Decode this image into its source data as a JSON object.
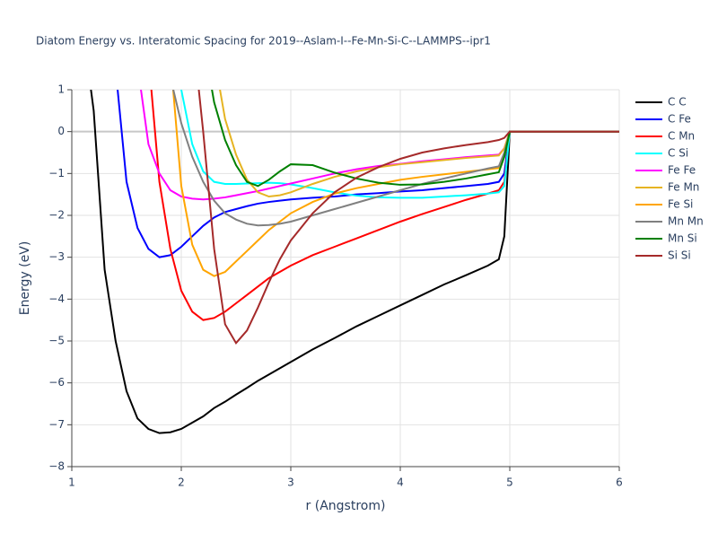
{
  "chart_data": {
    "type": "line",
    "title": "Diatom Energy vs. Interatomic Spacing for 2019--Aslam-I--Fe-Mn-Si-C--LAMMPS--ipr1",
    "x_label": "r (Angstrom)",
    "y_label": "Energy (eV)",
    "x": [
      1.15,
      1.2,
      1.3,
      1.4,
      1.5,
      1.6,
      1.7,
      1.8,
      1.9,
      2.0,
      2.1,
      2.2,
      2.3,
      2.4,
      2.5,
      2.6,
      2.7,
      2.8,
      2.9,
      3.0,
      3.2,
      3.4,
      3.6,
      3.8,
      4.0,
      4.2,
      4.4,
      4.6,
      4.8,
      4.9,
      4.95,
      5.0,
      5.5,
      6.0
    ],
    "series": [
      {
        "name": "C C",
        "color": "#000000",
        "values": [
          1.5,
          0.5,
          -3.3,
          -5.0,
          -6.2,
          -6.85,
          -7.1,
          -7.2,
          -7.18,
          -7.1,
          -6.95,
          -6.8,
          -6.6,
          -6.45,
          -6.28,
          -6.12,
          -5.95,
          -5.8,
          -5.65,
          -5.5,
          -5.2,
          -4.93,
          -4.65,
          -4.4,
          -4.15,
          -3.9,
          -3.65,
          -3.43,
          -3.2,
          -3.05,
          -2.5,
          0,
          0,
          0
        ]
      },
      {
        "name": "C Fe",
        "color": "#0000ff",
        "values": [
          null,
          null,
          null,
          1.5,
          -1.2,
          -2.3,
          -2.8,
          -3.0,
          -2.95,
          -2.75,
          -2.5,
          -2.25,
          -2.05,
          -1.92,
          -1.85,
          -1.78,
          -1.72,
          -1.68,
          -1.65,
          -1.62,
          -1.58,
          -1.55,
          -1.5,
          -1.47,
          -1.43,
          -1.4,
          -1.35,
          -1.3,
          -1.25,
          -1.2,
          -1.0,
          0,
          0,
          0
        ]
      },
      {
        "name": "C Mn",
        "color": "#ff0000",
        "values": [
          null,
          null,
          null,
          null,
          null,
          null,
          1.8,
          -1.2,
          -2.8,
          -3.8,
          -4.3,
          -4.5,
          -4.45,
          -4.3,
          -4.1,
          -3.9,
          -3.7,
          -3.5,
          -3.35,
          -3.2,
          -2.95,
          -2.75,
          -2.55,
          -2.35,
          -2.15,
          -1.97,
          -1.8,
          -1.63,
          -1.48,
          -1.4,
          -1.2,
          0,
          0,
          0
        ]
      },
      {
        "name": "C Si",
        "color": "#00ffff",
        "values": [
          null,
          null,
          null,
          null,
          null,
          null,
          null,
          null,
          2.5,
          1.0,
          -0.3,
          -0.95,
          -1.2,
          -1.25,
          -1.25,
          -1.24,
          -1.23,
          -1.22,
          -1.23,
          -1.26,
          -1.35,
          -1.45,
          -1.53,
          -1.57,
          -1.58,
          -1.58,
          -1.55,
          -1.52,
          -1.48,
          -1.45,
          -1.3,
          0,
          0,
          0
        ]
      },
      {
        "name": "Fe Fe",
        "color": "#ff00ff",
        "values": [
          null,
          null,
          null,
          null,
          null,
          1.6,
          -0.3,
          -1.0,
          -1.4,
          -1.55,
          -1.6,
          -1.62,
          -1.6,
          -1.57,
          -1.52,
          -1.47,
          -1.42,
          -1.36,
          -1.3,
          -1.24,
          -1.12,
          -1.0,
          -0.9,
          -0.82,
          -0.77,
          -0.71,
          -0.66,
          -0.61,
          -0.57,
          -0.55,
          -0.4,
          0,
          0,
          0
        ]
      },
      {
        "name": "Fe Mn",
        "color": "#e6b422",
        "values": [
          null,
          null,
          null,
          null,
          null,
          null,
          null,
          null,
          null,
          null,
          null,
          null,
          1.8,
          0.3,
          -0.55,
          -1.15,
          -1.45,
          -1.55,
          -1.52,
          -1.45,
          -1.25,
          -1.08,
          -0.95,
          -0.85,
          -0.78,
          -0.73,
          -0.68,
          -0.63,
          -0.59,
          -0.57,
          -0.4,
          0,
          0,
          0
        ]
      },
      {
        "name": "Fe Si",
        "color": "#ffa500",
        "values": [
          null,
          null,
          null,
          null,
          null,
          null,
          null,
          null,
          1.8,
          -1.3,
          -2.7,
          -3.3,
          -3.45,
          -3.35,
          -3.1,
          -2.85,
          -2.6,
          -2.35,
          -2.15,
          -1.95,
          -1.68,
          -1.48,
          -1.35,
          -1.25,
          -1.15,
          -1.08,
          -1.02,
          -0.96,
          -0.9,
          -0.87,
          -0.6,
          0,
          0,
          0
        ]
      },
      {
        "name": "Mn Mn",
        "color": "#808080",
        "values": [
          null,
          null,
          null,
          null,
          null,
          null,
          null,
          null,
          1.3,
          0.2,
          -0.6,
          -1.2,
          -1.65,
          -1.95,
          -2.1,
          -2.2,
          -2.24,
          -2.23,
          -2.2,
          -2.15,
          -2.0,
          -1.85,
          -1.7,
          -1.55,
          -1.4,
          -1.25,
          -1.12,
          -1.0,
          -0.88,
          -0.83,
          -0.5,
          0,
          0,
          0
        ]
      },
      {
        "name": "Mn Si",
        "color": "#008000",
        "values": [
          null,
          null,
          null,
          null,
          null,
          null,
          null,
          null,
          null,
          null,
          null,
          2.2,
          0.7,
          -0.2,
          -0.8,
          -1.2,
          -1.3,
          -1.15,
          -0.95,
          -0.78,
          -0.8,
          -0.98,
          -1.12,
          -1.22,
          -1.27,
          -1.26,
          -1.2,
          -1.12,
          -1.02,
          -0.97,
          -0.6,
          0,
          0,
          0
        ]
      },
      {
        "name": "Si Si",
        "color": "#a52a2a",
        "values": [
          null,
          null,
          null,
          null,
          null,
          null,
          null,
          null,
          null,
          null,
          2.5,
          0.0,
          -2.8,
          -4.6,
          -5.05,
          -4.75,
          -4.2,
          -3.6,
          -3.05,
          -2.6,
          -1.95,
          -1.45,
          -1.1,
          -0.85,
          -0.65,
          -0.5,
          -0.4,
          -0.32,
          -0.25,
          -0.2,
          -0.15,
          0,
          0,
          0
        ]
      }
    ],
    "xlim": [
      1,
      6
    ],
    "ylim": [
      -8,
      1
    ],
    "xticks": [
      1,
      2,
      3,
      4,
      5,
      6
    ],
    "yticks": [
      1,
      0,
      {
        "value": -1,
        "label": "−1"
      },
      {
        "value": -2,
        "label": "−2"
      },
      {
        "value": -3,
        "label": "−3"
      },
      {
        "value": -4,
        "label": "−4"
      },
      {
        "value": -5,
        "label": "−5"
      },
      {
        "value": -6,
        "label": "−6"
      },
      {
        "value": -7,
        "label": "−7"
      },
      {
        "value": -8,
        "label": "−8"
      }
    ],
    "grid": true,
    "legend": "right"
  }
}
